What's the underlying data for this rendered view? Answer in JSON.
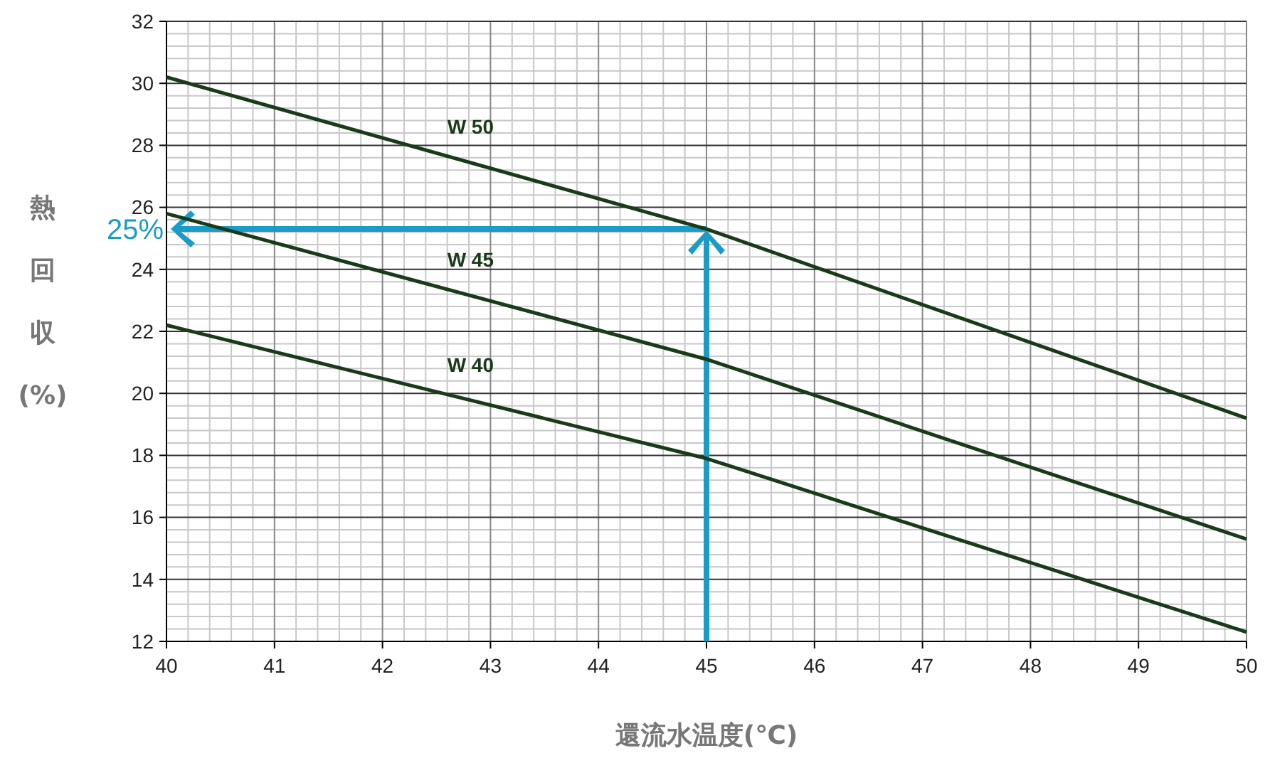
{
  "chart_data": {
    "type": "line",
    "xlabel": "還流水温度(℃)",
    "ylabel": "熱回収(%)",
    "x": [
      40,
      45,
      50
    ],
    "series": [
      {
        "name": "W 50",
        "color": "#1a3a1a",
        "values": [
          30.2,
          25.3,
          19.2
        ]
      },
      {
        "name": "W 45",
        "color": "#1a3a1a",
        "values": [
          25.8,
          21.1,
          15.3
        ]
      },
      {
        "name": "W 40",
        "color": "#1a3a1a",
        "values": [
          22.2,
          17.9,
          12.3
        ]
      }
    ],
    "xlim": [
      40,
      50
    ],
    "ylim": [
      12,
      32
    ],
    "xticks": [
      40,
      41,
      42,
      43,
      44,
      45,
      46,
      47,
      48,
      49,
      50
    ],
    "yticks": [
      12,
      14,
      16,
      18,
      20,
      22,
      24,
      26,
      28,
      30,
      32
    ],
    "grid": true,
    "marker": "none",
    "line_style": "solid",
    "annotations": [
      "25%"
    ]
  }
}
